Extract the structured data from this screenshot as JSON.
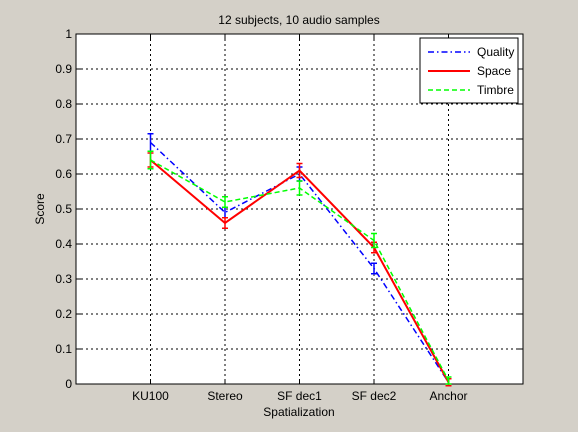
{
  "chart_data": {
    "type": "line",
    "title": "12 subjects, 10 audio samples",
    "xlabel": "Spatialization",
    "ylabel": "Score",
    "categories": [
      "KU100",
      "Stereo",
      "SF dec1",
      "SF dec2",
      "Anchor"
    ],
    "xlim": [
      0,
      6
    ],
    "ylim": [
      0,
      1
    ],
    "yticks": [
      "0",
      "0.1",
      "0.2",
      "0.3",
      "0.4",
      "0.5",
      "0.6",
      "0.7",
      "0.8",
      "0.9",
      "1"
    ],
    "grid": true,
    "legend_position": "top-right",
    "series": [
      {
        "name": "Quality",
        "color": "#0000ff",
        "dash": "dash-dot",
        "values": [
          0.69,
          0.49,
          0.6,
          0.33,
          0.005
        ],
        "errors": [
          0.025,
          0.015,
          0.02,
          0.015,
          0.01
        ]
      },
      {
        "name": "Space",
        "color": "#ff0000",
        "dash": "solid",
        "values": [
          0.64,
          0.46,
          0.61,
          0.39,
          0.005
        ],
        "errors": [
          0.02,
          0.015,
          0.02,
          0.015,
          0.01
        ]
      },
      {
        "name": "Timbre",
        "color": "#00ff00",
        "dash": "dashed",
        "values": [
          0.64,
          0.52,
          0.56,
          0.41,
          0.01
        ],
        "errors": [
          0.025,
          0.015,
          0.02,
          0.02,
          0.01
        ]
      }
    ]
  }
}
